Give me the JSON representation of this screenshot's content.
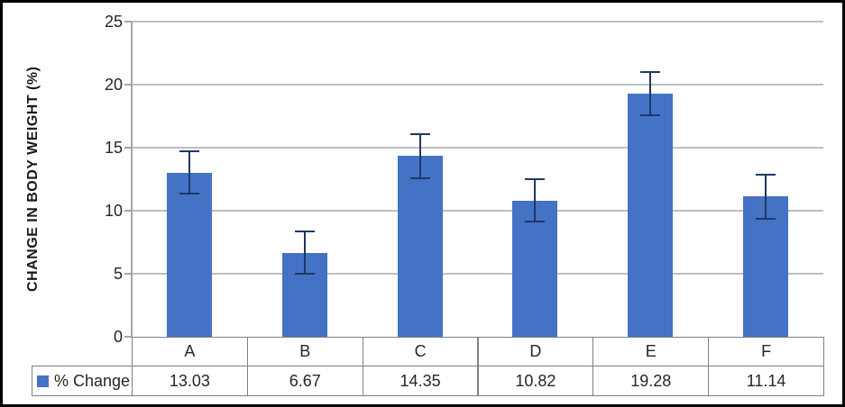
{
  "window": {
    "background": "#ffffff",
    "border_color": "#000000"
  },
  "chart_data": {
    "type": "bar",
    "title": "",
    "xlabel": "",
    "ylabel": "CHANGE IN BODY WEIGHT (%)",
    "categories": [
      "A",
      "B",
      "C",
      "D",
      "E",
      "F"
    ],
    "series": [
      {
        "name": "% Change",
        "values": [
          13.03,
          6.67,
          14.35,
          10.82,
          19.28,
          11.14
        ]
      }
    ],
    "error_bars": [
      1.65,
      1.7,
      1.75,
      1.7,
      1.7,
      1.75
    ],
    "ylim": [
      0,
      25
    ],
    "yticks": [
      0,
      5,
      10,
      15,
      20,
      25
    ],
    "grid": true,
    "legend_position": "data-table",
    "colors": {
      "bar": "#4472C4",
      "error_bar": "#1F3864",
      "gridline": "#BFBFBF",
      "axis": "#A6A6A6",
      "table_border": "#808080",
      "text": "#262626"
    }
  },
  "data_table": {
    "legend_label": "% Change",
    "legend_marker_color": "#4472C4",
    "value_labels": [
      "13.03",
      "6.67",
      "14.35",
      "10.82",
      "19.28",
      "11.14"
    ]
  }
}
